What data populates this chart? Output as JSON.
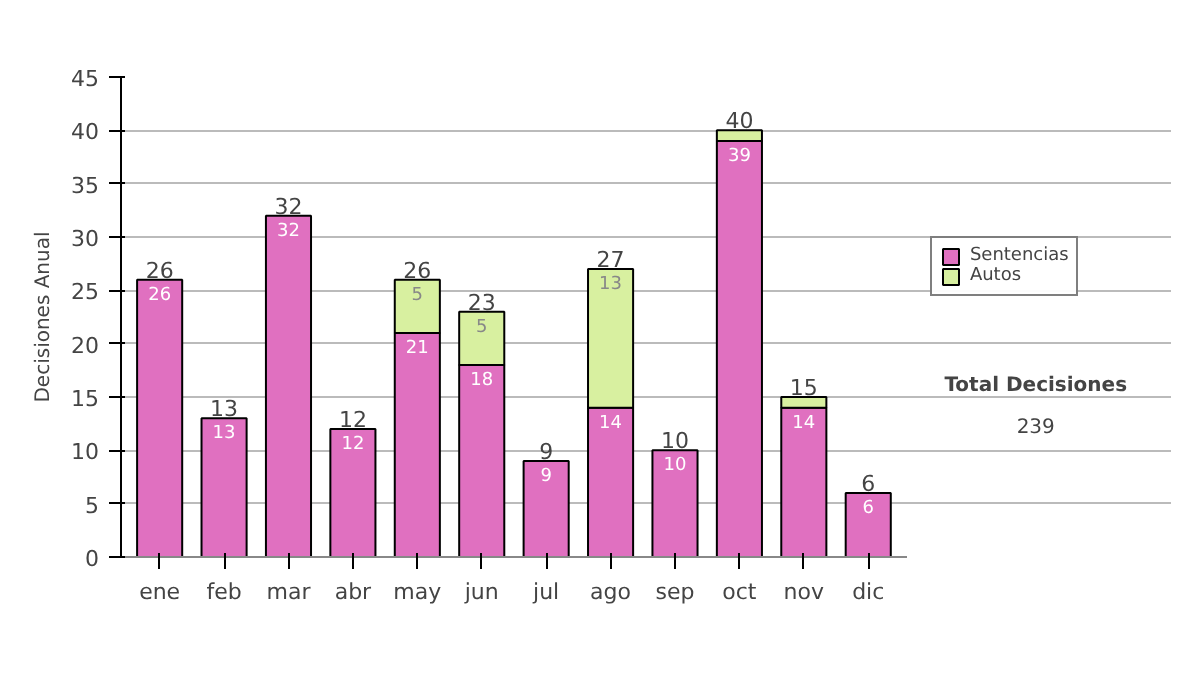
{
  "chart_data": {
    "type": "bar",
    "stacked": true,
    "ylabel": "Decisiones Anual",
    "categories": [
      "ene",
      "feb",
      "mar",
      "abr",
      "may",
      "jun",
      "jul",
      "ago",
      "sep",
      "oct",
      "nov",
      "dic"
    ],
    "series": [
      {
        "name": "Sentencias",
        "color": "#e070c0",
        "values": [
          26,
          13,
          32,
          12,
          21,
          18,
          9,
          14,
          10,
          39,
          14,
          6
        ],
        "value_labels": [
          "26",
          "13",
          "32",
          "12",
          "21",
          "18",
          "9",
          "14",
          "10",
          "39",
          "14",
          "6"
        ]
      },
      {
        "name": "Autos",
        "color": "#d8f0a0",
        "values": [
          0,
          0,
          0,
          0,
          5,
          5,
          0,
          13,
          0,
          1,
          1,
          0
        ],
        "value_labels": [
          null,
          null,
          null,
          null,
          "5",
          "5",
          null,
          "13",
          null,
          null,
          null,
          null
        ]
      }
    ],
    "totals": [
      "26",
      "13",
      "32",
      "12",
      "26",
      "23",
      "9",
      "27",
      "10",
      "40",
      "15",
      "6"
    ],
    "ylim": [
      0,
      45
    ],
    "yticks": [
      0,
      5,
      10,
      15,
      20,
      25,
      30,
      35,
      40,
      45
    ],
    "grid": "y",
    "legend": "right",
    "annotations": [
      "Total Decisiones",
      "239"
    ]
  }
}
